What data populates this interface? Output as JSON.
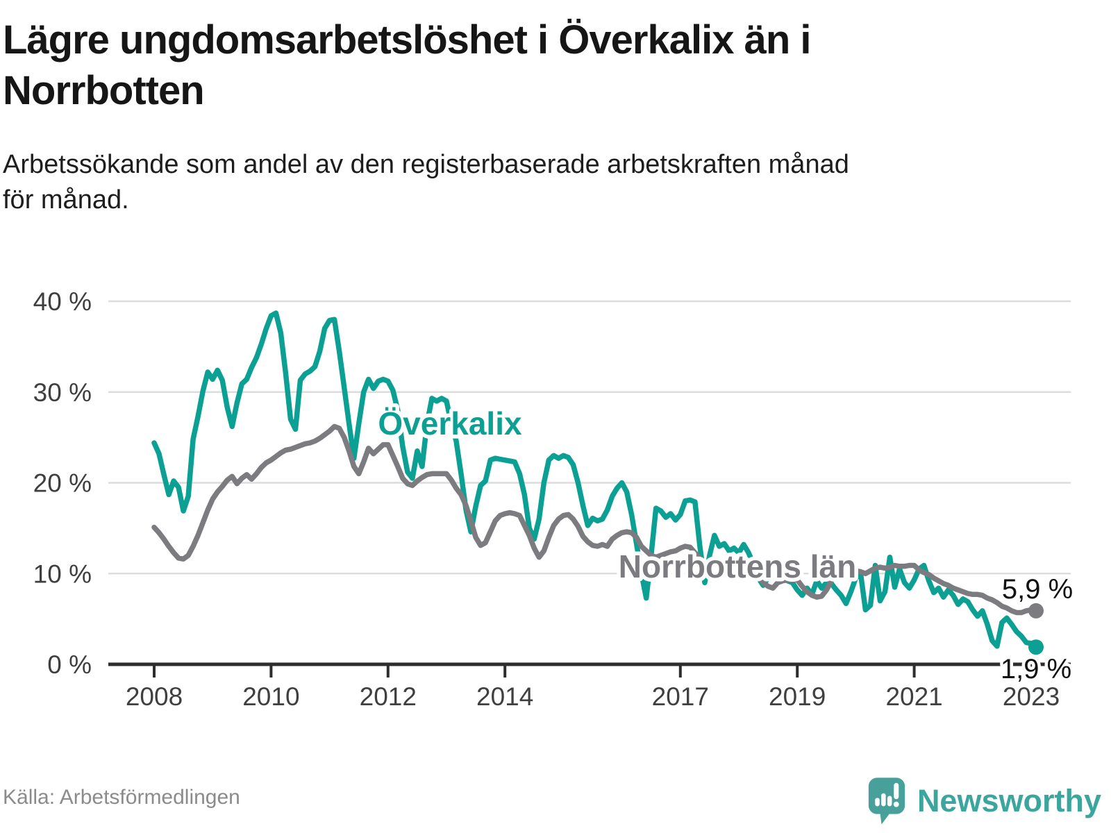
{
  "header": {
    "title": "Lägre ungdomsarbetslöshet i Överkalix än i\nNorrbotten",
    "subtitle": "Arbetssökande som andel av den registerbaserade arbetskraften månad\nför månad."
  },
  "footer": {
    "source": "Källa: Arbetsförmedlingen",
    "brand": "Newsworthy"
  },
  "colors": {
    "overkalix": "#0ba093",
    "norrbotten": "#7c7c80",
    "grid": "#dcdcdc",
    "axis": "#2d2d2d",
    "tick_text": "#3f3f3f",
    "end_label_text": "#111111",
    "brand_teal": "#3ba69e",
    "brand_bubble": "#47a19a"
  },
  "chart_data": {
    "type": "line",
    "title": "Lägre ungdomsarbetslöshet i Överkalix än i Norrbotten",
    "subtitle": "Arbetssökande som andel av den registerbaserade arbetskraften månad för månad.",
    "unit": "%",
    "frequency": "monthly",
    "x_start": "2008-01",
    "x_end": "2023-02",
    "ylim": [
      0,
      40
    ],
    "grid": true,
    "y_ticks": [
      {
        "label": "40 %",
        "value": 40
      },
      {
        "label": "30 %",
        "value": 30
      },
      {
        "label": "20 %",
        "value": 20
      },
      {
        "label": "10 %",
        "value": 10
      },
      {
        "label": "0 %",
        "value": 0
      }
    ],
    "x_ticks": [
      {
        "label": "2008",
        "value": 2008
      },
      {
        "label": "2010",
        "value": 2010
      },
      {
        "label": "2012",
        "value": 2012
      },
      {
        "label": "2014",
        "value": 2014
      },
      {
        "label": "2017",
        "value": 2017
      },
      {
        "label": "2019",
        "value": 2019
      },
      {
        "label": "2021",
        "value": 2021
      },
      {
        "label": "2023",
        "value": 2023
      }
    ],
    "series": [
      {
        "name": "Överkalix",
        "key": "overkalix",
        "color": "#0ba093",
        "end_label": "1,9 %",
        "last_value": 1.9,
        "values": [
          24.4,
          23.2,
          20.9,
          18.7,
          20.2,
          19.5,
          16.9,
          18.5,
          24.8,
          27.3,
          30.1,
          32.2,
          31.4,
          32.4,
          31.3,
          28.3,
          26.2,
          28.8,
          30.9,
          31.4,
          32.7,
          33.8,
          35.3,
          37.0,
          38.4,
          38.7,
          36.5,
          32.0,
          27.0,
          25.9,
          31.3,
          32.0,
          32.3,
          32.8,
          34.5,
          37.0,
          37.9,
          38.0,
          34.5,
          30.5,
          26.5,
          22.7,
          26.5,
          30.0,
          31.4,
          30.4,
          31.2,
          31.4,
          31.2,
          30.2,
          28.0,
          24.0,
          21.2,
          20.5,
          23.5,
          21.8,
          26.5,
          29.3,
          29.0,
          29.3,
          29.0,
          26.5,
          24.6,
          21.0,
          17.0,
          14.6,
          17.4,
          19.7,
          20.2,
          22.5,
          22.7,
          22.6,
          22.5,
          22.4,
          22.3,
          21.0,
          18.7,
          15.0,
          13.8,
          16.0,
          20.0,
          22.5,
          23.0,
          22.7,
          23.0,
          22.8,
          22.0,
          20.0,
          17.5,
          15.3,
          16.1,
          15.8,
          16.0,
          17.0,
          18.5,
          19.4,
          20.0,
          19.0,
          16.5,
          13.3,
          10.0,
          7.3,
          12.0,
          17.2,
          16.9,
          16.2,
          16.6,
          15.9,
          16.5,
          18.0,
          18.1,
          17.9,
          13.0,
          9.0,
          12.0,
          14.2,
          13.0,
          13.3,
          12.5,
          12.8,
          12.3,
          13.2,
          12.3,
          11.0,
          9.5,
          8.7,
          9.5,
          11.3,
          10.7,
          11.2,
          9.2,
          9.0,
          8.2,
          7.6,
          8.4,
          7.7,
          9.2,
          8.4,
          9.0,
          8.9,
          8.2,
          7.6,
          6.7,
          8.0,
          9.5,
          10.0,
          6.0,
          6.5,
          10.9,
          7.0,
          8.0,
          11.8,
          8.5,
          10.5,
          9.0,
          8.4,
          9.3,
          10.5,
          10.9,
          9.2,
          7.9,
          8.4,
          7.4,
          8.2,
          7.6,
          6.6,
          7.2,
          6.9,
          6.0,
          5.3,
          5.9,
          4.4,
          2.6,
          2.0,
          4.6,
          5.1,
          4.4,
          3.6,
          3.1,
          2.4,
          2.3,
          1.9
        ]
      },
      {
        "name": "Norrbottens län",
        "key": "norrbotten",
        "color": "#7c7c80",
        "end_label": "5,9 %",
        "last_value": 5.9,
        "values": [
          15.1,
          14.5,
          13.8,
          13.0,
          12.3,
          11.7,
          11.6,
          12.0,
          13.0,
          14.2,
          15.6,
          17.0,
          18.2,
          19.0,
          19.6,
          20.3,
          20.7,
          19.9,
          20.5,
          20.9,
          20.4,
          21.0,
          21.7,
          22.2,
          22.5,
          22.9,
          23.3,
          23.6,
          23.7,
          23.9,
          24.1,
          24.3,
          24.4,
          24.6,
          24.9,
          25.3,
          25.7,
          26.2,
          26.0,
          25.0,
          23.5,
          21.8,
          21.0,
          22.3,
          23.8,
          23.2,
          23.7,
          24.2,
          24.2,
          23.0,
          21.8,
          20.5,
          19.9,
          19.7,
          20.2,
          20.6,
          20.9,
          21.0,
          21.0,
          21.0,
          21.0,
          20.3,
          19.4,
          18.7,
          17.5,
          15.8,
          14.0,
          13.1,
          13.4,
          14.6,
          15.8,
          16.4,
          16.6,
          16.7,
          16.6,
          16.4,
          15.3,
          14.2,
          12.8,
          11.8,
          12.5,
          14.0,
          15.3,
          16.0,
          16.4,
          16.5,
          16.0,
          15.2,
          14.1,
          13.5,
          13.1,
          13.0,
          13.2,
          13.0,
          13.8,
          14.2,
          14.5,
          14.6,
          14.5,
          14.0,
          13.0,
          12.5,
          12.0,
          11.8,
          12.0,
          12.2,
          12.4,
          12.5,
          12.8,
          13.0,
          12.9,
          12.3,
          11.7,
          10.5,
          9.8,
          9.5,
          10.2,
          10.5,
          10.8,
          11.0,
          11.3,
          11.4,
          11.2,
          10.6,
          9.8,
          9.0,
          8.6,
          8.4,
          9.0,
          9.2,
          9.3,
          9.3,
          9.3,
          8.6,
          8.0,
          7.6,
          7.4,
          7.5,
          8.2,
          9.2,
          10.0,
          10.2,
          10.1,
          10.2,
          10.3,
          10.2,
          10.0,
          10.3,
          10.6,
          10.7,
          10.6,
          10.7,
          10.9,
          10.8,
          10.8,
          10.9,
          10.9,
          10.4,
          10.1,
          9.9,
          9.5,
          9.2,
          8.9,
          8.7,
          8.4,
          8.2,
          8.0,
          7.8,
          7.7,
          7.7,
          7.6,
          7.3,
          7.1,
          6.8,
          6.4,
          6.2,
          5.9,
          5.7,
          5.7,
          5.9,
          6.0,
          5.9
        ]
      }
    ],
    "legend_position": "inline-labels"
  }
}
